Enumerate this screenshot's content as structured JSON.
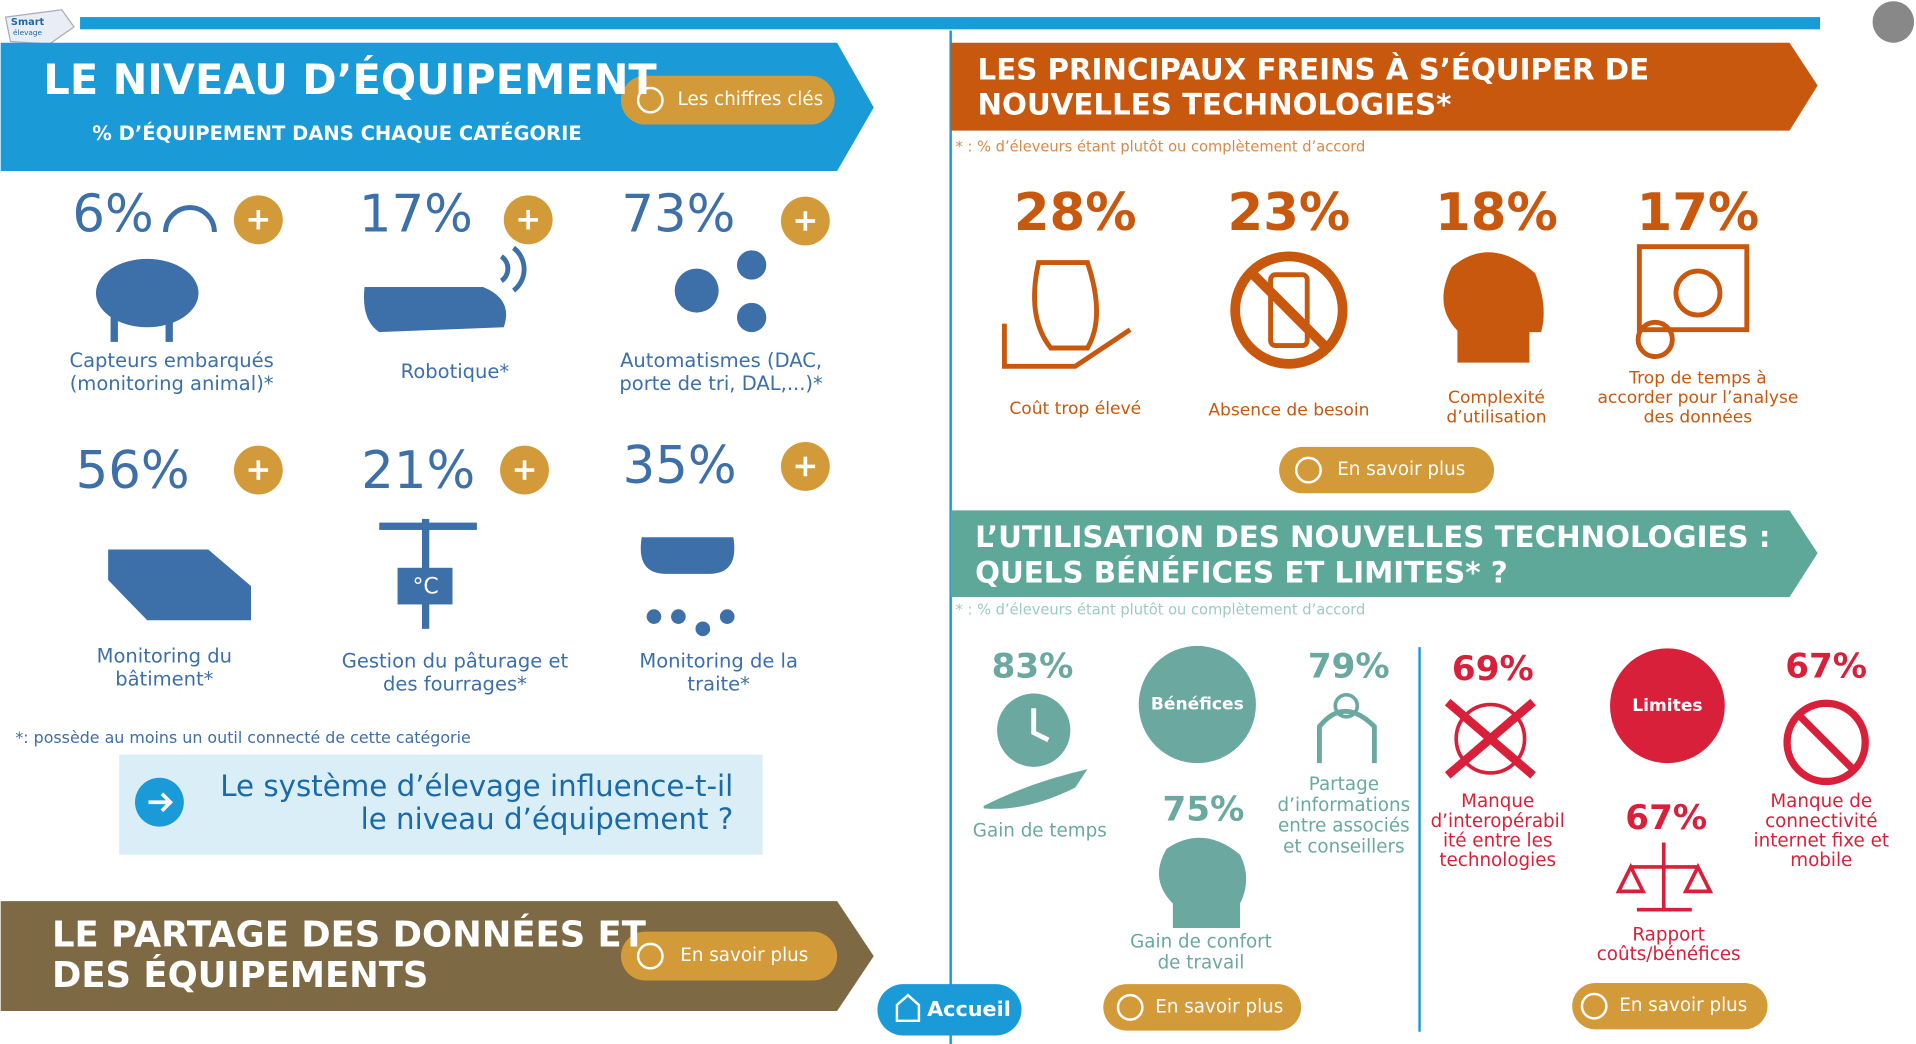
{
  "logo": {
    "name": "Smart",
    "sub": "élevage"
  },
  "equipment": {
    "title": "LE NIVEAU D’ÉQUIPEMENT",
    "subtitle": "% D’ÉQUIPEMENT DANS CHAQUE CATÉGORIE",
    "button": "Les chiffres clés",
    "items": [
      {
        "value": "6%",
        "label": [
          "Capteurs embarqués",
          "(monitoring animal)*"
        ]
      },
      {
        "value": "17%",
        "label": [
          "Robotique*"
        ]
      },
      {
        "value": "73%",
        "label": [
          "Automatismes (DAC,",
          "porte de tri, DAL,...)*"
        ]
      },
      {
        "value": "56%",
        "label": [
          "Monitoring du",
          "bâtiment*"
        ]
      },
      {
        "value": "21%",
        "label": [
          "Gestion du pâturage et",
          "des fourrages*"
        ]
      },
      {
        "value": "35%",
        "label": [
          "Monitoring de la",
          "traite*"
        ]
      }
    ],
    "footnote": "*: possède au moins un outil connecté de cette catégorie",
    "question": [
      "Le système d’élevage influence-t-il",
      "le niveau d’équipement ?"
    ]
  },
  "sharing": {
    "title": [
      "LE PARTAGE DES DONNÉES ET",
      "DES ÉQUIPEMENTS"
    ],
    "button": "En savoir plus"
  },
  "barriers": {
    "title": [
      "LES PRINCIPAUX FREINS À S’ÉQUIPER DE",
      "NOUVELLES TECHNOLOGIES*"
    ],
    "note": "* : % d’éleveurs étant plutôt ou complètement d’accord",
    "items": [
      {
        "value": "28%",
        "label": [
          "Coût trop élevé"
        ]
      },
      {
        "value": "23%",
        "label": [
          "Absence de besoin"
        ]
      },
      {
        "value": "18%",
        "label": [
          "Complexité",
          "d’utilisation"
        ]
      },
      {
        "value": "17%",
        "label": [
          "Trop de temps à",
          "accorder pour l’analyse",
          "des données"
        ]
      }
    ],
    "button": "En savoir plus"
  },
  "usage": {
    "title": [
      "L’UTILISATION DES NOUVELLES TECHNOLOGIES :",
      "QUELS BÉNÉFICES ET LIMITES* ?"
    ],
    "note": "* : % d’éleveurs étant plutôt ou complètement d’accord",
    "benefits": {
      "label": "Bénéfices",
      "items": [
        {
          "value": "83%",
          "label": [
            "Gain de temps"
          ]
        },
        {
          "value": "75%",
          "label": [
            "Gain de confort",
            "de travail"
          ]
        },
        {
          "value": "79%",
          "label": [
            "Partage",
            "d’informations",
            "entre associés",
            "et conseillers"
          ]
        }
      ],
      "button": "En savoir plus"
    },
    "limits": {
      "label": "Limites",
      "items": [
        {
          "value": "69%",
          "label": [
            "Manque",
            "d’interopérabil",
            "ité entre les",
            "technologies"
          ]
        },
        {
          "value": "67%",
          "label": [
            "Rapport",
            "coûts/bénéfices"
          ]
        },
        {
          "value": "67%",
          "label": [
            "Manque de",
            "connectivité",
            "internet fixe et",
            "mobile"
          ]
        }
      ],
      "button": "En savoir plus"
    }
  },
  "nav": {
    "home": "Accueil"
  }
}
